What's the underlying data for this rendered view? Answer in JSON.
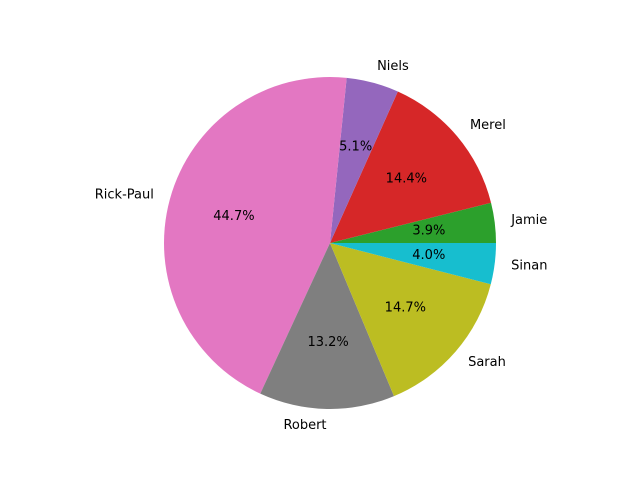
{
  "chart_data": {
    "type": "pie",
    "categories": [
      "Jamie",
      "Merel",
      "Niels",
      "Rick-Paul",
      "Robert",
      "Sarah",
      "Sinan"
    ],
    "values": [
      3.9,
      14.4,
      5.1,
      44.7,
      13.2,
      14.7,
      4.0
    ],
    "value_labels": [
      "3.9%",
      "14.4%",
      "5.1%",
      "44.7%",
      "13.2%",
      "14.7%",
      "4.0%"
    ],
    "colors": [
      "#2ca02c",
      "#d62728",
      "#9467bd",
      "#e377c2",
      "#7f7f7f",
      "#bcbd22",
      "#17becf"
    ],
    "start_angle_deg": 0,
    "direction": "counterclockwise",
    "legend": "none"
  }
}
